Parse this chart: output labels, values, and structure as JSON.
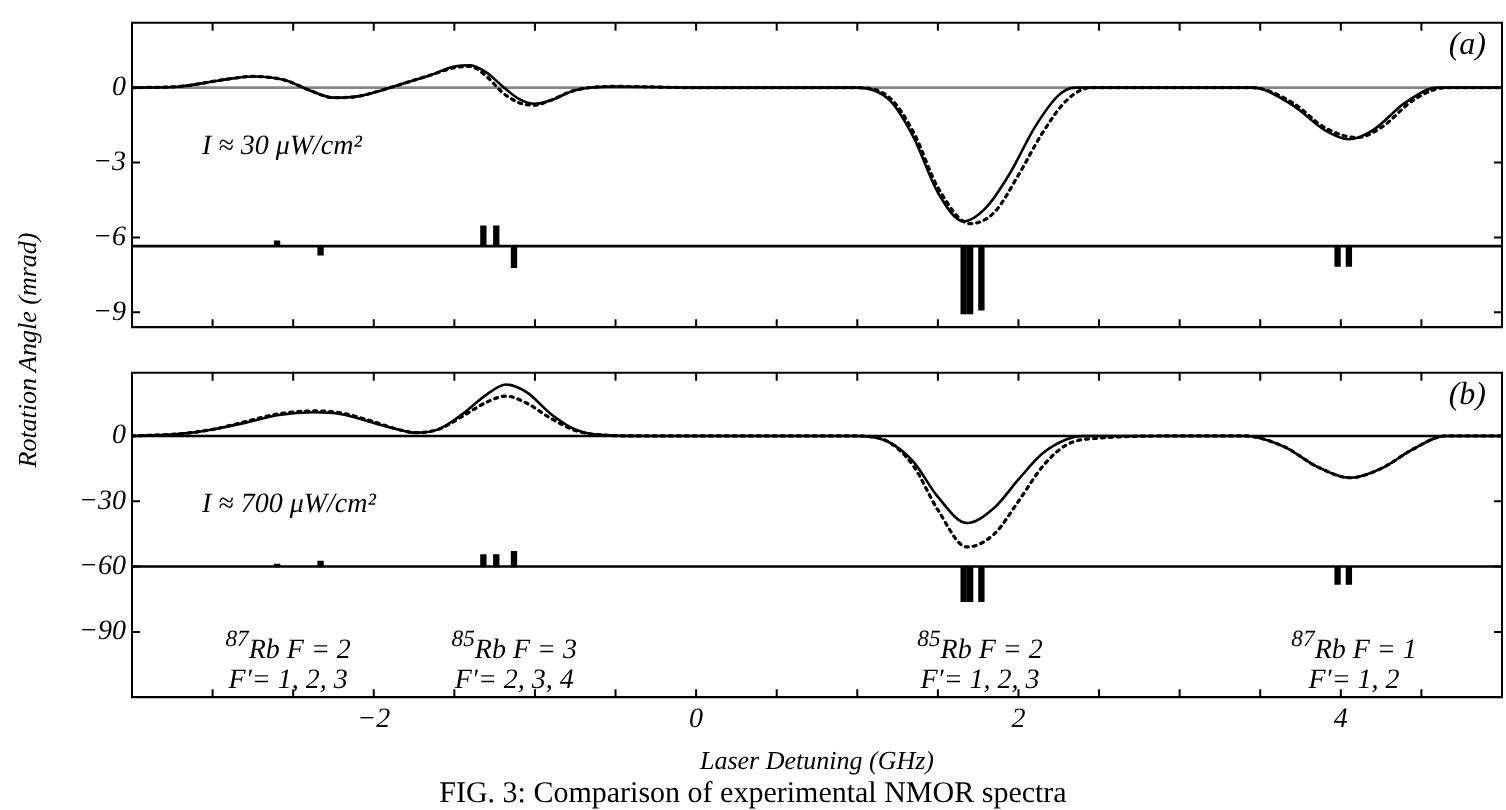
{
  "chart_data": [
    {
      "type": "line",
      "ylabel": "Rotation Angle (mrad)",
      "xlim": [
        -3.5,
        5
      ],
      "ylim": [
        -9.6,
        2.6
      ],
      "xticks": [
        {
          "value": -3,
          "label": null
        },
        {
          "value": -2.5,
          "label": null
        },
        {
          "value": -2,
          "label": null
        },
        {
          "value": -1.5,
          "label": null
        },
        {
          "value": -1,
          "label": null
        },
        {
          "value": -0.5,
          "label": null
        },
        {
          "value": 0,
          "label": null
        },
        {
          "value": 0.5,
          "label": null
        },
        {
          "value": 1,
          "label": null
        },
        {
          "value": 1.5,
          "label": null
        },
        {
          "value": 2,
          "label": null
        },
        {
          "value": 2.5,
          "label": null
        },
        {
          "value": 3,
          "label": null
        },
        {
          "value": 3.5,
          "label": null
        },
        {
          "value": 4,
          "label": null
        },
        {
          "value": 4.5,
          "label": null
        }
      ],
      "yticks": [
        {
          "value": 0,
          "label": "0"
        },
        {
          "value": -3,
          "label": "−3"
        },
        {
          "value": -6,
          "label": "−6"
        },
        {
          "value": -9,
          "label": "−9"
        }
      ],
      "tick_labels": "y",
      "grid": false,
      "legend": false,
      "marker": "none",
      "ref_lines": [
        {
          "axis": "y",
          "value": 0,
          "color": "#888888"
        },
        {
          "axis": "y",
          "value": -6.35,
          "color": "#000000"
        }
      ],
      "annotations": [
        "(a)",
        "I ≈ 30 μW/cm²"
      ],
      "series": [
        {
          "line_style": "solid",
          "color": "#000000",
          "x": [
            -3.5,
            -3.2,
            -2.95,
            -2.75,
            -2.55,
            -2.4,
            -2.25,
            -2.1,
            -1.95,
            -1.8,
            -1.65,
            -1.5,
            -1.4,
            -1.3,
            -1.2,
            -1.1,
            -1.0,
            -0.9,
            -0.75,
            -0.5,
            0,
            0.5,
            1.0,
            1.2,
            1.35,
            1.5,
            1.66,
            1.8,
            1.95,
            2.1,
            2.25,
            2.35,
            3,
            3.45,
            3.7,
            3.9,
            4.05,
            4.2,
            4.4,
            4.6,
            5
          ],
          "values": [
            0,
            0.05,
            0.3,
            0.45,
            0.3,
            -0.1,
            -0.4,
            -0.35,
            -0.1,
            0.2,
            0.5,
            0.85,
            0.9,
            0.6,
            0.05,
            -0.45,
            -0.65,
            -0.5,
            -0.1,
            0.05,
            0,
            0,
            0,
            -0.5,
            -2,
            -4.2,
            -5.36,
            -4.8,
            -3.4,
            -1.6,
            -0.3,
            0,
            0,
            0,
            -0.7,
            -1.7,
            -2.07,
            -1.7,
            -0.6,
            0,
            0
          ]
        },
        {
          "line_style": "dotted",
          "color": "#000000",
          "x": [
            -3.5,
            -3.2,
            -2.95,
            -2.75,
            -2.55,
            -2.4,
            -2.25,
            -2.1,
            -1.95,
            -1.8,
            -1.65,
            -1.5,
            -1.4,
            -1.3,
            -1.2,
            -1.1,
            -1.0,
            -0.9,
            -0.75,
            -0.5,
            0,
            0.5,
            1.0,
            1.2,
            1.35,
            1.5,
            1.7,
            1.85,
            2.0,
            2.15,
            2.3,
            2.45,
            3,
            3.45,
            3.7,
            3.9,
            4.1,
            4.25,
            4.45,
            4.65,
            5
          ],
          "values": [
            0,
            0.05,
            0.3,
            0.45,
            0.3,
            -0.1,
            -0.4,
            -0.35,
            -0.1,
            0.2,
            0.5,
            0.8,
            0.85,
            0.45,
            -0.2,
            -0.6,
            -0.7,
            -0.5,
            -0.1,
            0.05,
            0,
            0,
            0,
            -0.4,
            -1.8,
            -4,
            -5.45,
            -5,
            -3.5,
            -1.8,
            -0.5,
            0,
            0,
            0,
            -0.6,
            -1.6,
            -2.0,
            -1.6,
            -0.5,
            0,
            0
          ]
        },
        {
          "type": "bar",
          "color": "#000000",
          "x": [
            -2.6,
            -2.33,
            -1.32,
            -1.24,
            -1.13,
            1.66,
            1.7,
            1.77,
            3.98,
            4.05
          ],
          "base": [
            -6.35,
            -6.35,
            -6.35,
            -6.35,
            -6.35,
            -6.35,
            -6.35,
            -6.35,
            -6.35,
            -6.35
          ],
          "values": [
            0.2,
            -0.35,
            0.8,
            0.8,
            -0.85,
            -2.7,
            -2.7,
            -2.55,
            -0.8,
            -0.8
          ]
        }
      ]
    },
    {
      "type": "line",
      "xlabel": "Laser Detuning (GHz)",
      "xlim": [
        -3.5,
        5
      ],
      "ylim": [
        -120,
        29
      ],
      "xticks": [
        {
          "value": -3,
          "label": null
        },
        {
          "value": -2.5,
          "label": null
        },
        {
          "value": -2,
          "label": "−2"
        },
        {
          "value": -1.5,
          "label": null
        },
        {
          "value": -1,
          "label": null
        },
        {
          "value": -0.5,
          "label": null
        },
        {
          "value": 0,
          "label": "0"
        },
        {
          "value": 0.5,
          "label": null
        },
        {
          "value": 1,
          "label": null
        },
        {
          "value": 1.5,
          "label": null
        },
        {
          "value": 2,
          "label": "2"
        },
        {
          "value": 2.5,
          "label": null
        },
        {
          "value": 3,
          "label": null
        },
        {
          "value": 3.5,
          "label": null
        },
        {
          "value": 4,
          "label": "4"
        },
        {
          "value": 4.5,
          "label": null
        }
      ],
      "yticks": [
        {
          "value": 0,
          "label": "0"
        },
        {
          "value": -30,
          "label": "−30"
        },
        {
          "value": -60,
          "label": "−60"
        },
        {
          "value": -90,
          "label": "−90"
        }
      ],
      "grid": false,
      "legend": false,
      "marker": "none",
      "ref_lines": [
        {
          "axis": "y",
          "value": 0,
          "color": "#000000"
        },
        {
          "axis": "y",
          "value": -60,
          "color": "#000000"
        }
      ],
      "annotations": [
        "(b)",
        "I ≈ 700 μW/cm²",
        "FIG. 3: Comparison of experimental NMOR spectra",
        "$^{87}$Rb F = 2\nF′= 1, 2, 3",
        "$^{85}$Rb F = 3\nF′= 2, 3, 4",
        "$^{85}$Rb F = 2\nF′= 1, 2, 3",
        "$^{87}$Rb F = 1\nF′= 1, 2"
      ],
      "series": [
        {
          "line_style": "solid",
          "color": "#000000",
          "x": [
            -3.5,
            -3.2,
            -3.0,
            -2.8,
            -2.6,
            -2.37,
            -2.2,
            -2.0,
            -1.85,
            -1.74,
            -1.6,
            -1.45,
            -1.3,
            -1.18,
            -1.05,
            -0.9,
            -0.75,
            -0.6,
            -0.3,
            0,
            0.5,
            1.0,
            1.2,
            1.35,
            1.5,
            1.68,
            1.85,
            2.0,
            2.15,
            2.3,
            2.4,
            3,
            3.4,
            3.65,
            3.85,
            4.06,
            4.25,
            4.45,
            4.65,
            5
          ],
          "values": [
            0,
            1,
            3,
            6,
            9.5,
            10.9,
            10,
            6,
            3,
            1.5,
            3,
            10,
            19,
            23.6,
            20,
            10,
            3,
            0.5,
            0,
            0,
            0,
            0,
            -3,
            -12,
            -28,
            -40,
            -33,
            -20,
            -8,
            -1.5,
            0,
            0,
            0,
            -5,
            -14,
            -19.2,
            -15,
            -6,
            0,
            0
          ]
        },
        {
          "line_style": "dotted",
          "color": "#000000",
          "x": [
            -3.5,
            -3.2,
            -3.0,
            -2.8,
            -2.6,
            -2.37,
            -2.2,
            -2.0,
            -1.85,
            -1.74,
            -1.6,
            -1.45,
            -1.3,
            -1.18,
            -1.05,
            -0.9,
            -0.75,
            -0.6,
            -0.3,
            0,
            0.5,
            1.0,
            1.2,
            1.35,
            1.5,
            1.68,
            1.85,
            2.0,
            2.15,
            2.3,
            2.5,
            3,
            3.4,
            3.65,
            3.85,
            4.06,
            4.25,
            4.45,
            4.65,
            5
          ],
          "values": [
            0,
            1,
            3,
            6.5,
            10,
            11.5,
            10.5,
            6.5,
            3,
            1.5,
            3,
            9,
            15.5,
            18.3,
            15,
            8,
            2.5,
            0.5,
            0,
            0,
            0,
            0,
            -3,
            -14,
            -34,
            -51,
            -45,
            -30,
            -14,
            -4,
            -1,
            0,
            0,
            -5,
            -14,
            -19.2,
            -15,
            -6,
            0,
            0
          ]
        },
        {
          "type": "bar",
          "color": "#000000",
          "x": [
            -2.6,
            -2.33,
            -1.32,
            -1.24,
            -1.13,
            1.66,
            1.7,
            1.77,
            3.98,
            4.05
          ],
          "base": [
            -60,
            -60,
            -60,
            -60,
            -60,
            -60,
            -60,
            -60,
            -60,
            -60
          ],
          "values": [
            1,
            2.4,
            5.3,
            5.3,
            6.8,
            -16,
            -16,
            -16,
            -8,
            -8
          ]
        }
      ]
    }
  ]
}
